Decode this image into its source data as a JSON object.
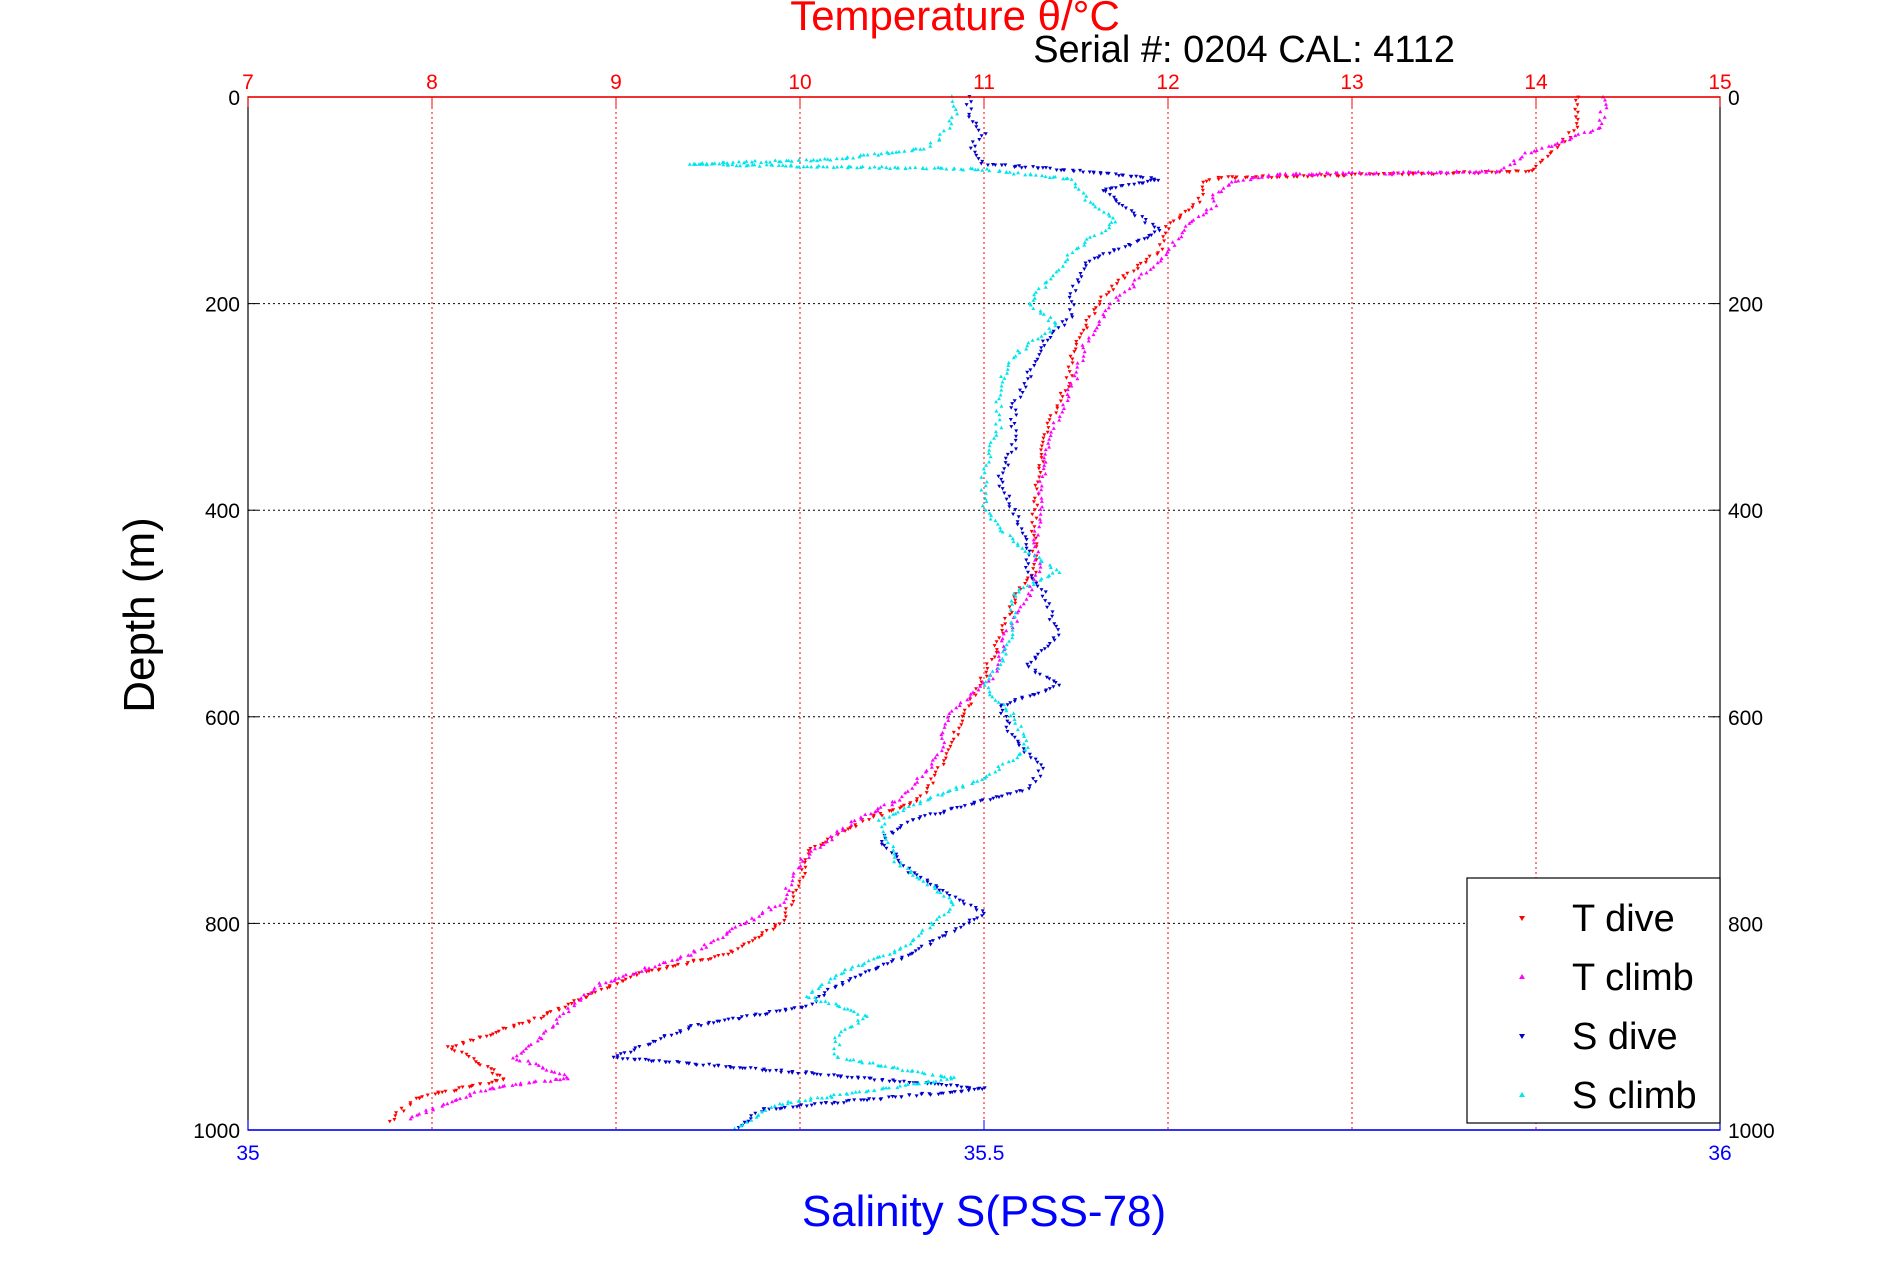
{
  "chart_data": {
    "type": "scatter",
    "title": "Temperature θ/°C",
    "subtitle": "Serial #: 0204  CAL: 4112",
    "ylabel": "Depth (m)",
    "xlabel_bottom": "Salinity S(PSS-78)",
    "xlabel_top": "Temperature θ/°C",
    "ylim": [
      0,
      1000
    ],
    "y_reversed": true,
    "x_top_lim": [
      7,
      15
    ],
    "x_bottom_lim": [
      35,
      36
    ],
    "y_ticks": [
      "0",
      "200",
      "400",
      "600",
      "800",
      "1000"
    ],
    "x_top_ticks": [
      "7",
      "8",
      "9",
      "10",
      "11",
      "12",
      "13",
      "14",
      "15"
    ],
    "x_bottom_ticks": [
      "35",
      "35.5",
      "36"
    ],
    "grid": true,
    "legend_position": "bottom-right",
    "colors": {
      "temperature_axis": "#ff0000",
      "salinity_axis": "#0000ff",
      "t_dive": "#ff0000",
      "t_climb": "#ff00ff",
      "s_dive": "#0000cc",
      "s_climb": "#00e5ee"
    },
    "series": [
      {
        "name": "T dive",
        "axis": "top",
        "points": [
          [
            14.23,
            0
          ],
          [
            14.22,
            30
          ],
          [
            14.08,
            55
          ],
          [
            13.98,
            72
          ],
          [
            12.3,
            78
          ],
          [
            12.2,
            82
          ],
          [
            12.18,
            95
          ],
          [
            12.15,
            105
          ],
          [
            12.0,
            125
          ],
          [
            11.95,
            150
          ],
          [
            11.75,
            175
          ],
          [
            11.62,
            200
          ],
          [
            11.5,
            240
          ],
          [
            11.45,
            280
          ],
          [
            11.35,
            320
          ],
          [
            11.3,
            360
          ],
          [
            11.28,
            400
          ],
          [
            11.27,
            440
          ],
          [
            11.28,
            460
          ],
          [
            11.18,
            480
          ],
          [
            11.1,
            520
          ],
          [
            11.0,
            560
          ],
          [
            10.88,
            600
          ],
          [
            10.8,
            640
          ],
          [
            10.65,
            680
          ],
          [
            10.35,
            700
          ],
          [
            10.05,
            730
          ],
          [
            10.0,
            760
          ],
          [
            9.9,
            800
          ],
          [
            9.6,
            830
          ],
          [
            9.1,
            850
          ],
          [
            8.6,
            890
          ],
          [
            8.1,
            920
          ],
          [
            8.4,
            950
          ],
          [
            7.9,
            970
          ],
          [
            7.75,
            995
          ]
        ]
      },
      {
        "name": "T climb",
        "axis": "top",
        "points": [
          [
            14.38,
            0
          ],
          [
            14.35,
            30
          ],
          [
            13.95,
            55
          ],
          [
            13.8,
            72
          ],
          [
            12.6,
            75
          ],
          [
            12.35,
            82
          ],
          [
            12.25,
            95
          ],
          [
            12.25,
            105
          ],
          [
            12.1,
            125
          ],
          [
            12.0,
            150
          ],
          [
            11.85,
            175
          ],
          [
            11.7,
            200
          ],
          [
            11.55,
            240
          ],
          [
            11.48,
            280
          ],
          [
            11.38,
            320
          ],
          [
            11.32,
            360
          ],
          [
            11.3,
            400
          ],
          [
            11.28,
            440
          ],
          [
            11.3,
            460
          ],
          [
            11.22,
            490
          ],
          [
            11.12,
            520
          ],
          [
            11.05,
            560
          ],
          [
            10.8,
            600
          ],
          [
            10.75,
            640
          ],
          [
            10.55,
            680
          ],
          [
            10.3,
            700
          ],
          [
            10.0,
            740
          ],
          [
            9.9,
            780
          ],
          [
            9.7,
            800
          ],
          [
            9.4,
            830
          ],
          [
            8.9,
            860
          ],
          [
            8.7,
            890
          ],
          [
            8.6,
            910
          ],
          [
            8.45,
            930
          ],
          [
            8.75,
            950
          ],
          [
            8.3,
            960
          ],
          [
            8.0,
            980
          ],
          [
            7.85,
            990
          ]
        ]
      },
      {
        "name": "S dive",
        "axis": "bottom",
        "points": [
          [
            35.49,
            0
          ],
          [
            35.49,
            20
          ],
          [
            35.5,
            35
          ],
          [
            35.49,
            50
          ],
          [
            35.5,
            65
          ],
          [
            35.57,
            72
          ],
          [
            35.62,
            80
          ],
          [
            35.58,
            90
          ],
          [
            35.6,
            110
          ],
          [
            35.62,
            130
          ],
          [
            35.57,
            160
          ],
          [
            35.56,
            190
          ],
          [
            35.56,
            210
          ],
          [
            35.54,
            240
          ],
          [
            35.53,
            270
          ],
          [
            35.52,
            300
          ],
          [
            35.52,
            340
          ],
          [
            35.51,
            370
          ],
          [
            35.52,
            400
          ],
          [
            35.53,
            440
          ],
          [
            35.53,
            460
          ],
          [
            35.54,
            480
          ],
          [
            35.55,
            520
          ],
          [
            35.53,
            550
          ],
          [
            35.55,
            570
          ],
          [
            35.51,
            590
          ],
          [
            35.52,
            620
          ],
          [
            35.54,
            650
          ],
          [
            35.53,
            670
          ],
          [
            35.45,
            700
          ],
          [
            35.43,
            720
          ],
          [
            35.45,
            750
          ],
          [
            35.5,
            790
          ],
          [
            35.45,
            830
          ],
          [
            35.4,
            860
          ],
          [
            35.38,
            880
          ],
          [
            35.3,
            900
          ],
          [
            35.25,
            930
          ],
          [
            35.38,
            945
          ],
          [
            35.5,
            960
          ],
          [
            35.35,
            980
          ],
          [
            35.33,
            1000
          ]
        ]
      },
      {
        "name": "S climb",
        "axis": "bottom",
        "points": [
          [
            35.48,
            0
          ],
          [
            35.48,
            20
          ],
          [
            35.47,
            40
          ],
          [
            35.46,
            50
          ],
          [
            35.4,
            60
          ],
          [
            35.3,
            65
          ],
          [
            35.5,
            70
          ],
          [
            35.56,
            80
          ],
          [
            35.57,
            100
          ],
          [
            35.59,
            120
          ],
          [
            35.56,
            150
          ],
          [
            35.55,
            170
          ],
          [
            35.53,
            200
          ],
          [
            35.55,
            220
          ],
          [
            35.52,
            250
          ],
          [
            35.51,
            280
          ],
          [
            35.51,
            320
          ],
          [
            35.5,
            360
          ],
          [
            35.5,
            400
          ],
          [
            35.52,
            430
          ],
          [
            35.55,
            460
          ],
          [
            35.52,
            480
          ],
          [
            35.52,
            520
          ],
          [
            35.51,
            550
          ],
          [
            35.5,
            570
          ],
          [
            35.52,
            600
          ],
          [
            35.53,
            630
          ],
          [
            35.5,
            660
          ],
          [
            35.46,
            680
          ],
          [
            35.43,
            700
          ],
          [
            35.44,
            740
          ],
          [
            35.48,
            780
          ],
          [
            35.45,
            820
          ],
          [
            35.4,
            850
          ],
          [
            35.38,
            870
          ],
          [
            35.42,
            890
          ],
          [
            35.4,
            910
          ],
          [
            35.4,
            930
          ],
          [
            35.48,
            950
          ],
          [
            35.36,
            975
          ],
          [
            35.33,
            1000
          ]
        ]
      }
    ]
  }
}
